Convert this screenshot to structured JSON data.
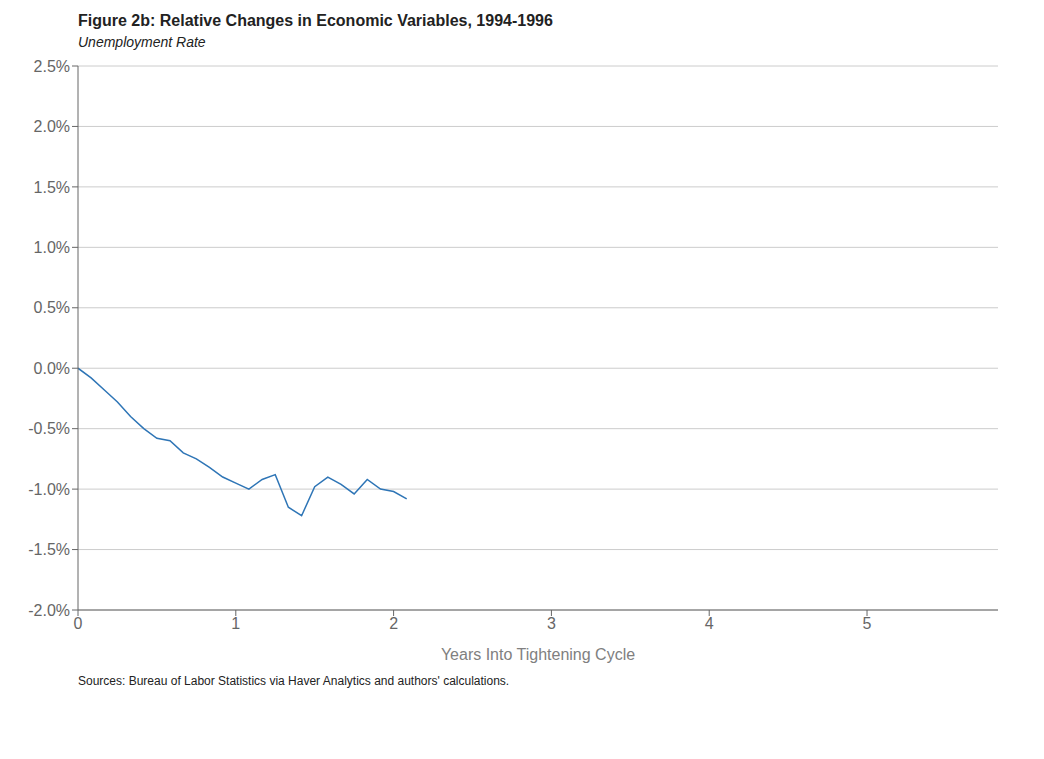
{
  "chart_data": {
    "type": "line",
    "title": "Figure 2b: Relative Changes in Economic Variables, 1994-1996",
    "subtitle": "Unemployment Rate",
    "xlabel": "Years Into Tightening Cycle",
    "annotations": [
      "Sources: Bureau of Labor Statistics via Haver Analytics and authors' calculations."
    ],
    "x": [
      0.0,
      0.083,
      0.167,
      0.25,
      0.333,
      0.417,
      0.5,
      0.583,
      0.667,
      0.75,
      0.833,
      0.917,
      1.0,
      1.083,
      1.167,
      1.25,
      1.333,
      1.417,
      1.5,
      1.583,
      1.667,
      1.75,
      1.833,
      1.917,
      2.0,
      2.083
    ],
    "values": [
      0.0,
      -0.0008,
      -0.0018,
      -0.0028,
      -0.004,
      -0.005,
      -0.0058,
      -0.006,
      -0.007,
      -0.0075,
      -0.0082,
      -0.009,
      -0.0095,
      -0.01,
      -0.0092,
      -0.0088,
      -0.0115,
      -0.0122,
      -0.0098,
      -0.009,
      -0.0096,
      -0.0104,
      -0.0092,
      -0.01,
      -0.0102,
      -0.0108
    ],
    "color": "#2E75B6",
    "xlim": [
      0,
      5.83
    ],
    "xticks": [
      0,
      1,
      2,
      3,
      4,
      5
    ],
    "ylim": [
      -0.02,
      0.025
    ],
    "yticks": [
      {
        "value": -0.02,
        "label": "-2.0%"
      },
      {
        "value": -0.015,
        "label": "-1.5%"
      },
      {
        "value": -0.01,
        "label": "-1.0%"
      },
      {
        "value": -0.005,
        "label": "-0.5%"
      },
      {
        "value": 0.0,
        "label": "0.0%"
      },
      {
        "value": 0.005,
        "label": "0.5%"
      },
      {
        "value": 0.01,
        "label": "1.0%"
      },
      {
        "value": 0.015,
        "label": "1.5%"
      },
      {
        "value": 0.02,
        "label": "2.0%"
      },
      {
        "value": 0.025,
        "label": "2.5%"
      }
    ],
    "grid": "y"
  }
}
